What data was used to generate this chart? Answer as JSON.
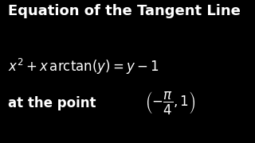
{
  "background_color": "#000000",
  "title_text": "Equation of the Tangent Line",
  "title_color": "#ffffff",
  "title_fontsize": 13,
  "title_bold": true,
  "equation_color": "#ffffff",
  "equation_fontsize": 12,
  "point_prefix": "at the point",
  "point_prefix_color": "#ffffff",
  "point_prefix_fontsize": 12,
  "point_prefix_bold": true,
  "point_math_color": "#ffffff",
  "point_math_fontsize": 12
}
